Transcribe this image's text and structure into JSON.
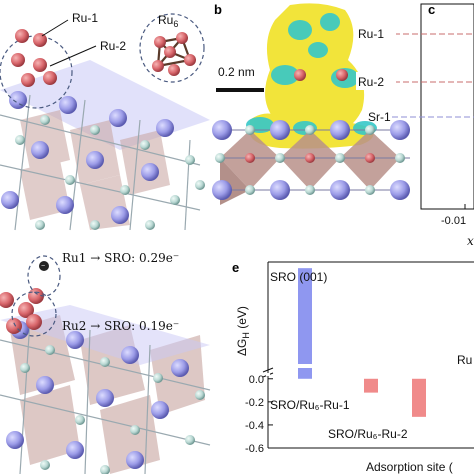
{
  "panels": {
    "a": {
      "labels": [
        "Ru-1",
        "Ru-2"
      ],
      "inset_label_main": "Ru",
      "inset_label_sub": "6"
    },
    "b": {
      "letter": "b",
      "scale_bar": "0.2 nm"
    },
    "c": {
      "letter": "c",
      "labels": [
        "Ru-1",
        "Ru-2",
        "Sr-1"
      ],
      "x_tick": "-0.01",
      "x_axis_fragment": "x"
    },
    "d": {
      "transfer_1": "Ru1 → SRO: 0.29e⁻",
      "transfer_2": "Ru2 → SRO: 0.19e⁻",
      "electron_symbol": "−"
    },
    "e": {
      "letter": "e",
      "title_text": "SRO (001)",
      "ylabel": "ΔG",
      "ylabel_sub": "H",
      "ylabel_unit": " (eV)",
      "right_fragment": "Ru",
      "bar_label_1": "SRO/Ru₆-Ru-1",
      "bar_label_2": "SRO/Ru₆-Ru-2",
      "xlabel": "Adsorption site (",
      "colors": {
        "sro": "#8f97f0",
        "ru": "#f08a8a"
      }
    }
  },
  "chart_data": {
    "type": "bar",
    "categories": [
      "SRO (001)",
      "SRO/Ru₆-Ru-1",
      "SRO/Ru₆-Ru-2"
    ],
    "values": [
      1.62,
      -0.12,
      -0.33
    ],
    "ylabel": "ΔGH (eV)",
    "xlabel": "Adsorption site (",
    "y_ticks": [
      0.0,
      -0.2,
      -0.4,
      -0.6
    ],
    "axis_break": true,
    "upper_segment_range": [
      0.3,
      1.7
    ],
    "lower_segment_range": [
      -0.6,
      0.05
    ],
    "grid": false
  }
}
